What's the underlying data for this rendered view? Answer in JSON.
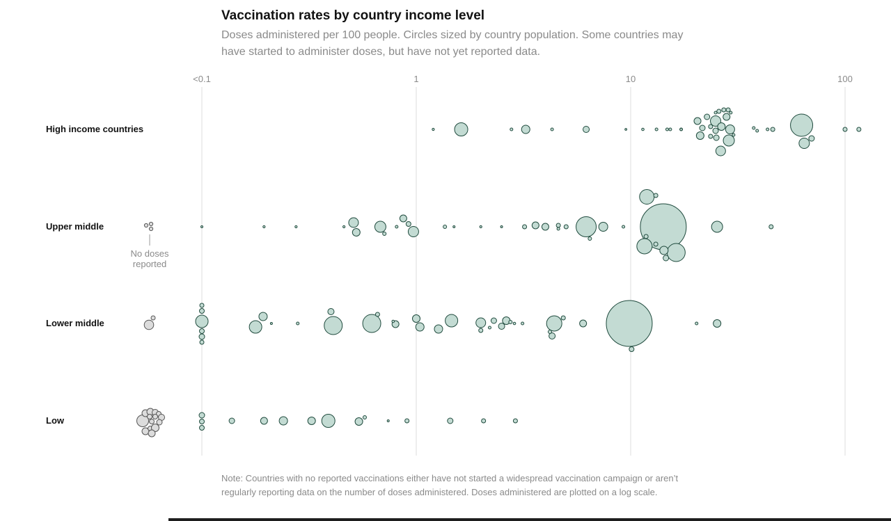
{
  "title": "Vaccination rates by country income level",
  "subtitle": "Doses administered per 100 people. Circles sized by country population. Some countries may have started to administer doses, but have not yet reported data.",
  "note": "Note: Countries with no reported vaccinations either have not started a widespread vaccination campaign or aren’t regularly reporting data on the number of doses administered. Doses administered are plotted on a log scale.",
  "colors": {
    "bubble_fill": "#c3dbd3",
    "bubble_stroke": "#1f4a3d",
    "nodose_fill": "#dcdcdc",
    "nodose_stroke": "#555555",
    "grid": "#dddddd"
  },
  "chart_data": {
    "type": "scatter",
    "scale": "log",
    "x_axis": {
      "ticks": [
        {
          "value": 0.1,
          "label": "<0.1"
        },
        {
          "value": 1,
          "label": "1"
        },
        {
          "value": 10,
          "label": "10"
        },
        {
          "value": 100,
          "label": "100"
        }
      ],
      "range": [
        0.1,
        120
      ]
    },
    "size_encoding": "population (circle radius)",
    "no_doses_label": [
      "No doses",
      "reported"
    ],
    "groups": [
      {
        "name": "High income countries",
        "no_doses": [],
        "points": [
          {
            "x": 1.2,
            "r": 1.6
          },
          {
            "x": 1.62,
            "r": 9.5
          },
          {
            "x": 2.78,
            "r": 2
          },
          {
            "x": 3.24,
            "r": 6
          },
          {
            "x": 4.3,
            "r": 2
          },
          {
            "x": 6.2,
            "r": 4.5
          },
          {
            "x": 9.5,
            "r": 1.4
          },
          {
            "x": 11.4,
            "r": 1.8
          },
          {
            "x": 13.2,
            "r": 2
          },
          {
            "x": 14.8,
            "r": 2
          },
          {
            "x": 15.3,
            "r": 2
          },
          {
            "x": 17.2,
            "r": 2
          },
          {
            "x": 17.2,
            "r": 1.8
          },
          {
            "x": 20.5,
            "r": 5,
            "dy": -12
          },
          {
            "x": 22.7,
            "r": 4,
            "dy": -18
          },
          {
            "x": 24.9,
            "r": 7.5,
            "dy": -12
          },
          {
            "x": 28.0,
            "r": 5,
            "dy": -18
          },
          {
            "x": 21.6,
            "r": 4,
            "dy": -2
          },
          {
            "x": 23.6,
            "r": 3,
            "dy": -4
          },
          {
            "x": 24.9,
            "r": 4,
            "dy": 2
          },
          {
            "x": 26.5,
            "r": 5.5,
            "dy": -4
          },
          {
            "x": 29.1,
            "r": 6.5,
            "dy": 0
          },
          {
            "x": 25.8,
            "r": 3,
            "dy": -26
          },
          {
            "x": 27.2,
            "r": 3,
            "dy": -28
          },
          {
            "x": 28.5,
            "r": 3,
            "dy": -28
          },
          {
            "x": 29.3,
            "r": 2,
            "dy": -24
          },
          {
            "x": 24.9,
            "r": 2,
            "dy": -24
          },
          {
            "x": 21.1,
            "r": 5.5,
            "dy": 9
          },
          {
            "x": 23.6,
            "r": 3,
            "dy": 10
          },
          {
            "x": 25.1,
            "r": 4,
            "dy": 12
          },
          {
            "x": 30.2,
            "r": 2,
            "dy": 8
          },
          {
            "x": 28.7,
            "r": 8,
            "dy": 16
          },
          {
            "x": 26.3,
            "r": 7,
            "dy": 31
          },
          {
            "x": 37.5,
            "r": 2,
            "dy": -2
          },
          {
            "x": 38.9,
            "r": 2,
            "dy": 2
          },
          {
            "x": 43.5,
            "r": 2
          },
          {
            "x": 46.0,
            "r": 3
          },
          {
            "x": 62.7,
            "r": 16,
            "dy": -6
          },
          {
            "x": 64.5,
            "r": 7.5,
            "dy": 20
          },
          {
            "x": 69.8,
            "r": 4,
            "dy": 13
          },
          {
            "x": 100,
            "r": 3
          },
          {
            "x": 116,
            "r": 3
          }
        ]
      },
      {
        "name": "Upper middle",
        "no_doses": [
          {
            "r": 2.6,
            "dx": -4,
            "dy": -2
          },
          {
            "r": 2.6,
            "dx": 3,
            "dy": -4
          },
          {
            "r": 2.6,
            "dx": 3,
            "dy": 3
          }
        ],
        "points": [
          {
            "x": 0.1,
            "r": 1.5
          },
          {
            "x": 0.195,
            "r": 1.6
          },
          {
            "x": 0.275,
            "r": 1.6
          },
          {
            "x": 0.46,
            "r": 1.6
          },
          {
            "x": 0.51,
            "r": 7,
            "dy": -6
          },
          {
            "x": 0.525,
            "r": 5.5,
            "dy": 8
          },
          {
            "x": 0.68,
            "r": 8
          },
          {
            "x": 0.71,
            "r": 2.5,
            "dy": 10
          },
          {
            "x": 0.81,
            "r": 2
          },
          {
            "x": 0.87,
            "r": 5,
            "dy": -12
          },
          {
            "x": 0.92,
            "r": 3.5,
            "dy": -4
          },
          {
            "x": 0.97,
            "r": 7.5,
            "dy": 7
          },
          {
            "x": 1.36,
            "r": 2.5
          },
          {
            "x": 1.5,
            "r": 1.5
          },
          {
            "x": 2.0,
            "r": 1.6
          },
          {
            "x": 2.5,
            "r": 1.5
          },
          {
            "x": 3.2,
            "r": 3
          },
          {
            "x": 3.6,
            "r": 5,
            "dy": -2
          },
          {
            "x": 4.0,
            "r": 5
          },
          {
            "x": 4.6,
            "r": 3,
            "dy": -2
          },
          {
            "x": 4.6,
            "r": 2,
            "dy": 3
          },
          {
            "x": 5.0,
            "r": 3
          },
          {
            "x": 6.2,
            "r": 14.5
          },
          {
            "x": 6.45,
            "r": 2.5,
            "dy": 17
          },
          {
            "x": 7.45,
            "r": 6.5
          },
          {
            "x": 9.25,
            "r": 2
          },
          {
            "x": 11.9,
            "r": 10.5,
            "dy": -43
          },
          {
            "x": 13.1,
            "r": 3,
            "dy": -45
          },
          {
            "x": 14.2,
            "r": 33
          },
          {
            "x": 11.8,
            "r": 3,
            "dy": 14
          },
          {
            "x": 11.6,
            "r": 11,
            "dy": 28
          },
          {
            "x": 13.1,
            "r": 3,
            "dy": 25
          },
          {
            "x": 14.3,
            "r": 6,
            "dy": 34
          },
          {
            "x": 14.6,
            "r": 4,
            "dy": 45
          },
          {
            "x": 16.3,
            "r": 13,
            "dy": 37
          },
          {
            "x": 25.3,
            "r": 8
          },
          {
            "x": 45.2,
            "r": 3
          }
        ]
      },
      {
        "name": "Lower middle",
        "no_doses": [
          {
            "r": 6.8,
            "dx": 0,
            "dy": 2
          },
          {
            "r": 3,
            "dx": 6,
            "dy": -8
          }
        ],
        "points": [
          {
            "x": 0.1,
            "r": 3,
            "dy": -26
          },
          {
            "x": 0.1,
            "r": 3.5,
            "dy": -18
          },
          {
            "x": 0.1,
            "r": 9,
            "dy": -3
          },
          {
            "x": 0.1,
            "r": 3.5,
            "dy": 11
          },
          {
            "x": 0.1,
            "r": 4,
            "dy": 19
          },
          {
            "x": 0.1,
            "r": 3,
            "dy": 27
          },
          {
            "x": 0.178,
            "r": 9,
            "dy": 5
          },
          {
            "x": 0.193,
            "r": 6,
            "dy": -10
          },
          {
            "x": 0.211,
            "r": 1.5
          },
          {
            "x": 0.28,
            "r": 2
          },
          {
            "x": 0.4,
            "r": 4.5,
            "dy": -17
          },
          {
            "x": 0.41,
            "r": 13,
            "dy": 3
          },
          {
            "x": 0.62,
            "r": 13
          },
          {
            "x": 0.66,
            "r": 3,
            "dy": -13
          },
          {
            "x": 0.78,
            "r": 1.8,
            "dy": -3
          },
          {
            "x": 0.8,
            "r": 5,
            "dy": 1
          },
          {
            "x": 1.0,
            "r": 5.5,
            "dy": -7
          },
          {
            "x": 1.04,
            "r": 6,
            "dy": 5
          },
          {
            "x": 1.27,
            "r": 6,
            "dy": 8
          },
          {
            "x": 1.46,
            "r": 9,
            "dy": -4
          },
          {
            "x": 2.0,
            "r": 7,
            "dy": -1
          },
          {
            "x": 2.0,
            "r": 3,
            "dy": 10
          },
          {
            "x": 2.3,
            "r": 4,
            "dy": -4
          },
          {
            "x": 2.2,
            "r": 2,
            "dy": 6
          },
          {
            "x": 2.5,
            "r": 4.5,
            "dy": 4
          },
          {
            "x": 2.63,
            "r": 5.5,
            "dy": -4
          },
          {
            "x": 2.75,
            "r": 2.5,
            "dy": -2
          },
          {
            "x": 2.87,
            "r": 1.8
          },
          {
            "x": 3.13,
            "r": 2
          },
          {
            "x": 4.4,
            "r": 11
          },
          {
            "x": 4.2,
            "r": 2.5,
            "dy": 12
          },
          {
            "x": 4.3,
            "r": 4.5,
            "dy": 18
          },
          {
            "x": 4.85,
            "r": 3,
            "dy": -8
          },
          {
            "x": 6.0,
            "r": 5
          },
          {
            "x": 9.85,
            "r": 33
          },
          {
            "x": 10.1,
            "r": 3.5,
            "dy": 37
          },
          {
            "x": 20.3,
            "r": 2
          },
          {
            "x": 25.3,
            "r": 5.5
          }
        ]
      },
      {
        "name": "Low",
        "no_doses": [
          {
            "r": 8.5,
            "dx": -9,
            "dy": 0
          },
          {
            "r": 5,
            "dx": -5,
            "dy": -11
          },
          {
            "r": 5,
            "dx": 2,
            "dy": -13
          },
          {
            "r": 4.5,
            "dx": 9,
            "dy": -12
          },
          {
            "r": 3.5,
            "dx": 14,
            "dy": -10
          },
          {
            "r": 3.5,
            "dx": 1,
            "dy": -6
          },
          {
            "r": 3.5,
            "dx": 9,
            "dy": -6
          },
          {
            "r": 4.5,
            "dx": 18,
            "dy": -5
          },
          {
            "r": 3.5,
            "dx": 4,
            "dy": 1
          },
          {
            "r": 4,
            "dx": 15,
            "dy": 2
          },
          {
            "r": 5,
            "dx": -5,
            "dy": 15
          },
          {
            "r": 3.5,
            "dx": 2,
            "dy": 11
          },
          {
            "r": 5.5,
            "dx": 9,
            "dy": 10
          },
          {
            "r": 5,
            "dx": 4,
            "dy": 18
          }
        ],
        "points": [
          {
            "x": 0.1,
            "r": 4,
            "dy": -8
          },
          {
            "x": 0.1,
            "r": 3.5,
            "dy": 1
          },
          {
            "x": 0.1,
            "r": 3.5,
            "dy": 10
          },
          {
            "x": 0.138,
            "r": 4
          },
          {
            "x": 0.195,
            "r": 5
          },
          {
            "x": 0.24,
            "r": 6
          },
          {
            "x": 0.325,
            "r": 5.5
          },
          {
            "x": 0.389,
            "r": 9.5
          },
          {
            "x": 0.54,
            "r": 5.5,
            "dy": 1
          },
          {
            "x": 0.575,
            "r": 2.5,
            "dy": -5
          },
          {
            "x": 0.74,
            "r": 1.5
          },
          {
            "x": 0.905,
            "r": 3
          },
          {
            "x": 1.44,
            "r": 4
          },
          {
            "x": 2.06,
            "r": 3
          },
          {
            "x": 2.9,
            "r": 3
          }
        ]
      }
    ]
  }
}
